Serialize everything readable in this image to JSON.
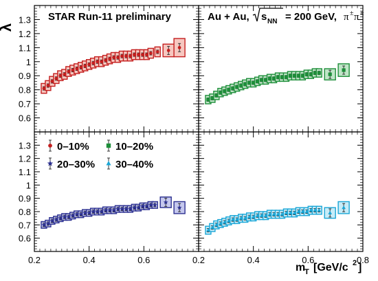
{
  "chart_data": {
    "type": "scatter",
    "y_axis_label": "λ",
    "x_axis_label_main": "m",
    "x_axis_label_sub": "T",
    "x_axis_label_units": "[GeV/c",
    "x_axis_label_exp": "2",
    "x_axis_label_close": "]",
    "xlim": [
      0.2,
      0.8
    ],
    "ylim": [
      0.5,
      1.4
    ],
    "x_ticks": [
      0.2,
      0.4,
      0.6,
      0.8
    ],
    "x_tick_labels": [
      "0.2",
      "0.4",
      "0.6",
      "0.8"
    ],
    "y_ticks": [
      0.6,
      0.7,
      0.8,
      0.9,
      1.0,
      1.1,
      1.2,
      1.3
    ],
    "y_tick_labels": [
      "0.6",
      "0.7",
      "0.8",
      "0.9",
      "1",
      "1.1",
      "1.2",
      "1.3"
    ],
    "title_left": "STAR Run-11 preliminary",
    "title_right_prefix": "Au + Au,",
    "title_right_sqrt": "s",
    "title_right_sub": "NN",
    "title_right_suffix": "= 200 GeV,",
    "title_right_particle": "π",
    "title_right_charge": "±",
    "grid": false,
    "legend_position": "top-left of lower-left panel",
    "series": [
      {
        "name": "0–10%",
        "panel": "top-left",
        "marker": "circle",
        "color": "#c41e1e",
        "fill": "#f7c7c0",
        "x": [
          0.235,
          0.25,
          0.265,
          0.28,
          0.295,
          0.31,
          0.325,
          0.34,
          0.355,
          0.37,
          0.385,
          0.4,
          0.415,
          0.43,
          0.445,
          0.46,
          0.475,
          0.49,
          0.505,
          0.52,
          0.535,
          0.55,
          0.565,
          0.58,
          0.595,
          0.61,
          0.625,
          0.65,
          0.69,
          0.73
        ],
        "y": [
          0.81,
          0.83,
          0.86,
          0.88,
          0.9,
          0.91,
          0.93,
          0.94,
          0.95,
          0.96,
          0.97,
          0.98,
          0.99,
          1.0,
          1.0,
          1.01,
          1.02,
          1.03,
          1.03,
          1.04,
          1.04,
          1.04,
          1.05,
          1.05,
          1.05,
          1.05,
          1.06,
          1.07,
          1.08,
          1.1
        ],
        "sys": [
          0.07,
          0.07,
          0.07,
          0.07,
          0.07,
          0.07,
          0.07,
          0.07,
          0.07,
          0.07,
          0.07,
          0.07,
          0.07,
          0.07,
          0.07,
          0.07,
          0.07,
          0.07,
          0.07,
          0.07,
          0.07,
          0.07,
          0.07,
          0.07,
          0.07,
          0.07,
          0.07,
          0.07,
          0.09,
          0.13
        ]
      },
      {
        "name": "10–20%",
        "panel": "top-right",
        "marker": "square",
        "color": "#1e8e3a",
        "fill": "#bfe6c7",
        "x": [
          0.235,
          0.25,
          0.265,
          0.28,
          0.295,
          0.31,
          0.325,
          0.34,
          0.355,
          0.37,
          0.385,
          0.4,
          0.415,
          0.43,
          0.445,
          0.46,
          0.475,
          0.49,
          0.505,
          0.52,
          0.535,
          0.55,
          0.565,
          0.58,
          0.595,
          0.61,
          0.625,
          0.64,
          0.68,
          0.73
        ],
        "y": [
          0.73,
          0.74,
          0.76,
          0.78,
          0.79,
          0.8,
          0.81,
          0.82,
          0.83,
          0.84,
          0.85,
          0.85,
          0.86,
          0.87,
          0.87,
          0.88,
          0.88,
          0.89,
          0.89,
          0.89,
          0.9,
          0.9,
          0.9,
          0.9,
          0.91,
          0.91,
          0.92,
          0.92,
          0.91,
          0.94
        ],
        "sys": [
          0.06,
          0.06,
          0.06,
          0.06,
          0.06,
          0.06,
          0.06,
          0.06,
          0.06,
          0.06,
          0.06,
          0.06,
          0.06,
          0.06,
          0.06,
          0.06,
          0.06,
          0.06,
          0.06,
          0.06,
          0.06,
          0.06,
          0.06,
          0.06,
          0.06,
          0.06,
          0.06,
          0.06,
          0.08,
          0.09
        ]
      },
      {
        "name": "20–30%",
        "panel": "bottom-left",
        "marker": "star",
        "color": "#2b2f8f",
        "fill": "#c5c8ee",
        "x": [
          0.235,
          0.25,
          0.265,
          0.28,
          0.295,
          0.31,
          0.325,
          0.34,
          0.355,
          0.37,
          0.385,
          0.4,
          0.415,
          0.43,
          0.445,
          0.46,
          0.475,
          0.49,
          0.505,
          0.52,
          0.535,
          0.55,
          0.565,
          0.58,
          0.595,
          0.61,
          0.625,
          0.64,
          0.68,
          0.73
        ],
        "y": [
          0.7,
          0.71,
          0.73,
          0.74,
          0.75,
          0.76,
          0.76,
          0.77,
          0.78,
          0.78,
          0.79,
          0.79,
          0.8,
          0.8,
          0.8,
          0.81,
          0.81,
          0.81,
          0.82,
          0.82,
          0.82,
          0.82,
          0.83,
          0.83,
          0.84,
          0.84,
          0.85,
          0.85,
          0.87,
          0.83
        ],
        "sys": [
          0.05,
          0.05,
          0.05,
          0.05,
          0.05,
          0.05,
          0.05,
          0.05,
          0.05,
          0.05,
          0.05,
          0.05,
          0.05,
          0.05,
          0.05,
          0.05,
          0.05,
          0.05,
          0.05,
          0.05,
          0.05,
          0.05,
          0.05,
          0.05,
          0.05,
          0.05,
          0.05,
          0.05,
          0.08,
          0.09
        ]
      },
      {
        "name": "30–40%",
        "panel": "bottom-right",
        "marker": "triangle",
        "color": "#1aa6d6",
        "fill": "#c7ecf8",
        "x": [
          0.235,
          0.25,
          0.265,
          0.28,
          0.295,
          0.31,
          0.325,
          0.34,
          0.355,
          0.37,
          0.385,
          0.4,
          0.415,
          0.43,
          0.445,
          0.46,
          0.475,
          0.49,
          0.505,
          0.52,
          0.535,
          0.55,
          0.565,
          0.58,
          0.595,
          0.61,
          0.625,
          0.64,
          0.68,
          0.73
        ],
        "y": [
          0.66,
          0.68,
          0.7,
          0.71,
          0.72,
          0.73,
          0.74,
          0.74,
          0.75,
          0.75,
          0.76,
          0.76,
          0.77,
          0.77,
          0.77,
          0.78,
          0.78,
          0.78,
          0.78,
          0.79,
          0.79,
          0.79,
          0.8,
          0.8,
          0.8,
          0.81,
          0.81,
          0.81,
          0.79,
          0.83
        ],
        "sys": [
          0.06,
          0.06,
          0.06,
          0.06,
          0.06,
          0.06,
          0.06,
          0.06,
          0.06,
          0.06,
          0.06,
          0.06,
          0.06,
          0.06,
          0.06,
          0.06,
          0.06,
          0.06,
          0.06,
          0.06,
          0.06,
          0.06,
          0.06,
          0.06,
          0.06,
          0.06,
          0.06,
          0.06,
          0.08,
          0.09
        ]
      }
    ]
  }
}
